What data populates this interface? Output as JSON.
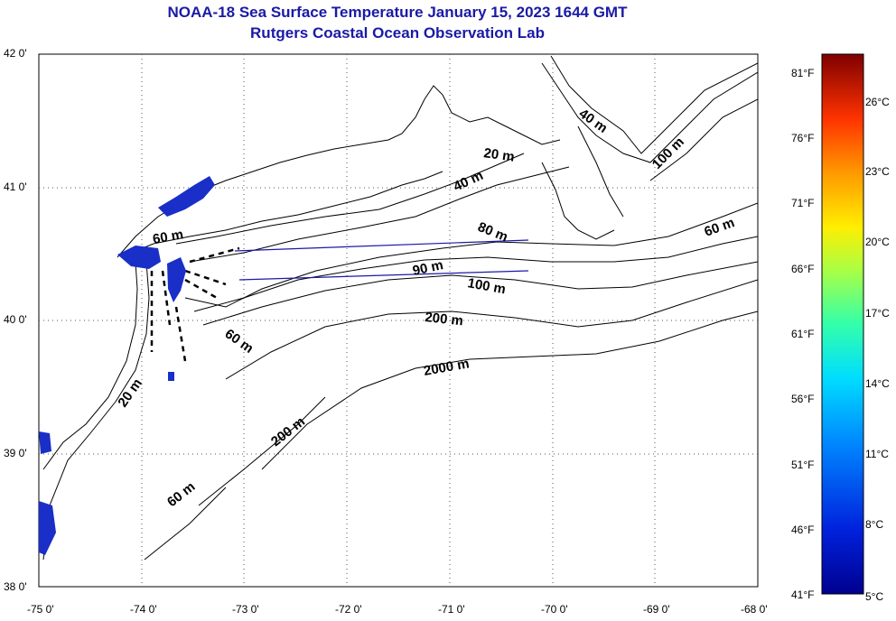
{
  "title": {
    "line1": "NOAA-18 Sea Surface Temperature January 15, 2023 1644 GMT",
    "line2": "Rutgers Coastal Ocean Observation Lab"
  },
  "map": {
    "lon_ticks": [
      "-75 0'",
      "-74 0'",
      "-73 0'",
      "-72 0'",
      "-71 0'",
      "-70 0'",
      "-69 0'",
      "-68 0'"
    ],
    "lat_ticks": [
      "42 0'",
      "41 0'",
      "40 0'",
      "39 0'",
      "38 0'"
    ],
    "lon_range": [
      -75,
      -68
    ],
    "lat_range": [
      38,
      42
    ],
    "depth_labels": [
      "20 m",
      "40 m",
      "60 m",
      "80 m",
      "90 m",
      "100 m",
      "200 m",
      "2000 m",
      "60 m",
      "20 m",
      "200 m",
      "60 m",
      "40 m",
      "100 m",
      "60 m"
    ],
    "sst_color_cold": "#1a2ec8",
    "contour_color": "#000000",
    "line_color": "#1a1aa6"
  },
  "colorbar": {
    "fahrenheit": [
      "81°F",
      "76°F",
      "71°F",
      "66°F",
      "61°F",
      "56°F",
      "51°F",
      "46°F",
      "41°F"
    ],
    "celsius": [
      "26°C",
      "23°C",
      "20°C",
      "17°C",
      "14°C",
      "11°C",
      "8°C",
      "5°C"
    ],
    "colors": [
      "#7f0000",
      "#d40000",
      "#ff4400",
      "#ff9900",
      "#ffee00",
      "#aaff44",
      "#33ffaa",
      "#00ddff",
      "#0088ff",
      "#0033dd",
      "#00008f"
    ]
  }
}
